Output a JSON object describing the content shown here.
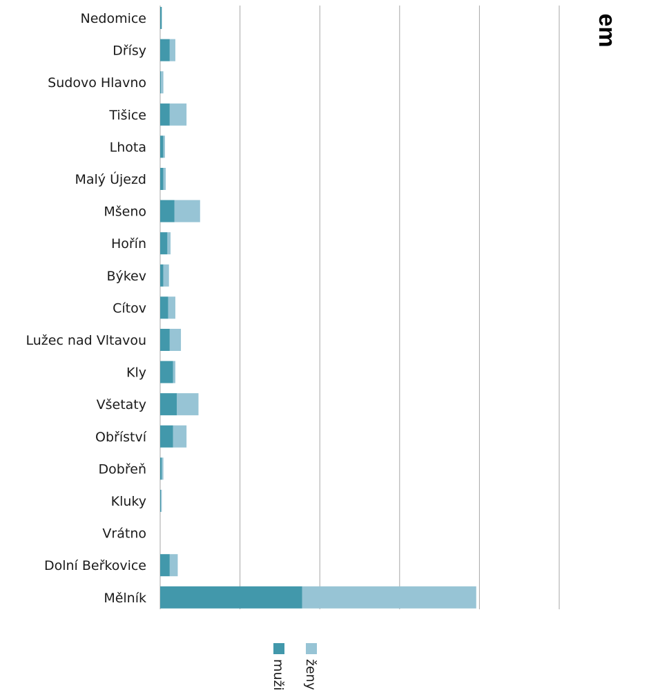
{
  "chart_data": {
    "type": "bar",
    "orientation": "horizontal",
    "stacked": true,
    "title": "em",
    "categories": [
      "Nedomice",
      "Dřísy",
      "Sudovo Hlavno",
      "Tišice",
      "Lhota",
      "Malý Újezd",
      "Mšeno",
      "Hořín",
      "Býkev",
      "Cítov",
      "Lužec nad Vltavou",
      "Kly",
      "Všetaty",
      "Obříství",
      "Dobřeň",
      "Kluky",
      "Vrátno",
      "Dolní Beřkovice",
      "Mělník"
    ],
    "series": [
      {
        "name": "muži",
        "color": "#4298ab",
        "values": [
          2,
          12,
          1,
          12,
          4,
          4,
          18,
          9,
          4,
          10,
          12,
          16,
          21,
          16,
          2,
          1,
          0,
          12,
          178
        ]
      },
      {
        "name": "ženy",
        "color": "#97c4d5",
        "values": [
          0,
          7,
          3,
          21,
          2,
          3,
          32,
          4,
          7,
          9,
          14,
          3,
          27,
          17,
          2,
          1,
          0,
          10,
          218
        ]
      }
    ],
    "xlim": [
      0,
      500
    ],
    "x_gridlines": [
      0,
      100,
      200,
      300,
      400,
      500
    ],
    "grid": true,
    "legend_position": "bottom"
  }
}
